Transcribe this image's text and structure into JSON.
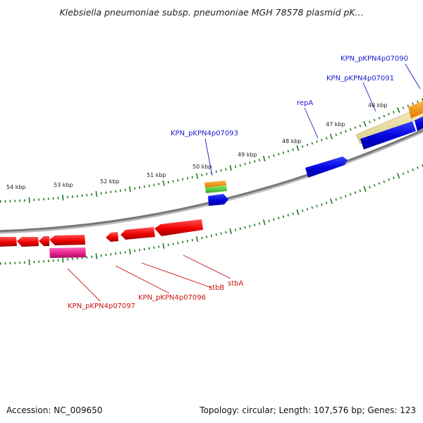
{
  "title": "Klebsiella pneumoniae subsp. pneumoniae MGH 78578 plasmid pK...",
  "footer": {
    "accession": "Accession: NC_009650",
    "summary": "Topology: circular; Length: 107,576 bp; Genes: 123"
  },
  "colors": {
    "forward_label": "#1a1acc",
    "reverse_label": "#cc1111",
    "backbone": "#777777",
    "tick": "#1e7a1e"
  },
  "kbp_ticks": [
    "46 kbp",
    "47 kbp",
    "48 kbp",
    "49 kbp",
    "50 kbp",
    "51 kbp",
    "52 kbp",
    "53 kbp",
    "54 kbp"
  ],
  "gene_labels": {
    "forward": [
      "KPN_pKPN4p07090",
      "KPN_pKPN4p07091",
      "repA",
      "KPN_pKPN4p07093"
    ],
    "reverse": [
      "stbA",
      "stbB",
      "KPN_pKPN4p07096",
      "KPN_pKPN4p07097"
    ]
  }
}
